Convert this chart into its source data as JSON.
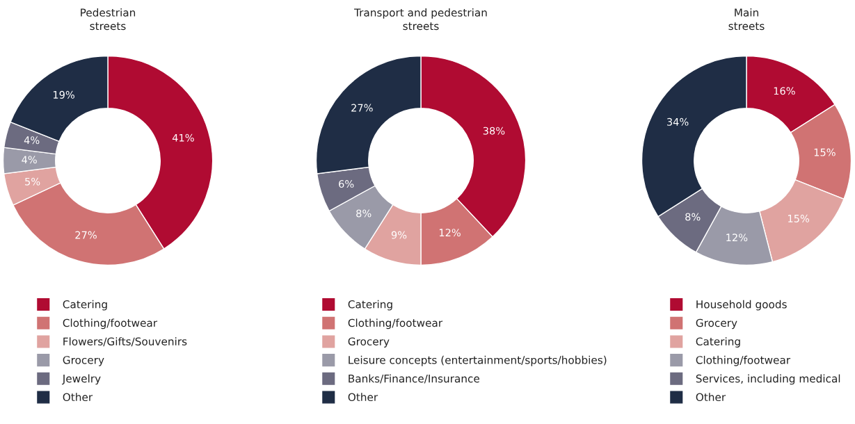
{
  "chart_data": [
    {
      "type": "donut",
      "title": "Pedestrian streets",
      "categories": [
        "Catering",
        "Clothing/footwear",
        "Flowers/Gifts/Souvenirs",
        "Grocery",
        "Jewelry",
        "Other"
      ],
      "values": [
        41,
        27,
        5,
        4,
        4,
        19
      ],
      "value_labels": [
        "41%",
        "27%",
        "5%",
        "4%",
        "4%",
        "19%"
      ],
      "colors": [
        "#b00b32",
        "#d07373",
        "#e0a3a0",
        "#9a9aa8",
        "#6c6b80",
        "#1f2d45"
      ],
      "legend": "bottom"
    },
    {
      "type": "donut",
      "title": "Transport and pedestrian streets",
      "categories": [
        "Catering",
        "Clothing/footwear",
        "Grocery",
        "Leisure concepts (entertainment/sports/hobbies)",
        "Banks/Finance/Insurance",
        "Other"
      ],
      "values": [
        38,
        12,
        9,
        8,
        6,
        27
      ],
      "value_labels": [
        "38%",
        "12%",
        "9%",
        "8%",
        "6%",
        "27%"
      ],
      "colors": [
        "#b00b32",
        "#d07373",
        "#e0a3a0",
        "#9a9aa8",
        "#6c6b80",
        "#1f2d45"
      ],
      "legend": "bottom"
    },
    {
      "type": "donut",
      "title": "Main streets",
      "categories": [
        "Household goods",
        "Grocery",
        "Catering",
        "Clothing/footwear",
        "Services, including medical",
        "Other"
      ],
      "values": [
        16,
        15,
        15,
        12,
        8,
        34
      ],
      "value_labels": [
        "16%",
        "15%",
        "15%",
        "12%",
        "8%",
        "34%"
      ],
      "colors": [
        "#b00b32",
        "#d07373",
        "#e0a3a0",
        "#9a9aa8",
        "#6c6b80",
        "#1f2d45"
      ],
      "legend": "bottom"
    }
  ]
}
